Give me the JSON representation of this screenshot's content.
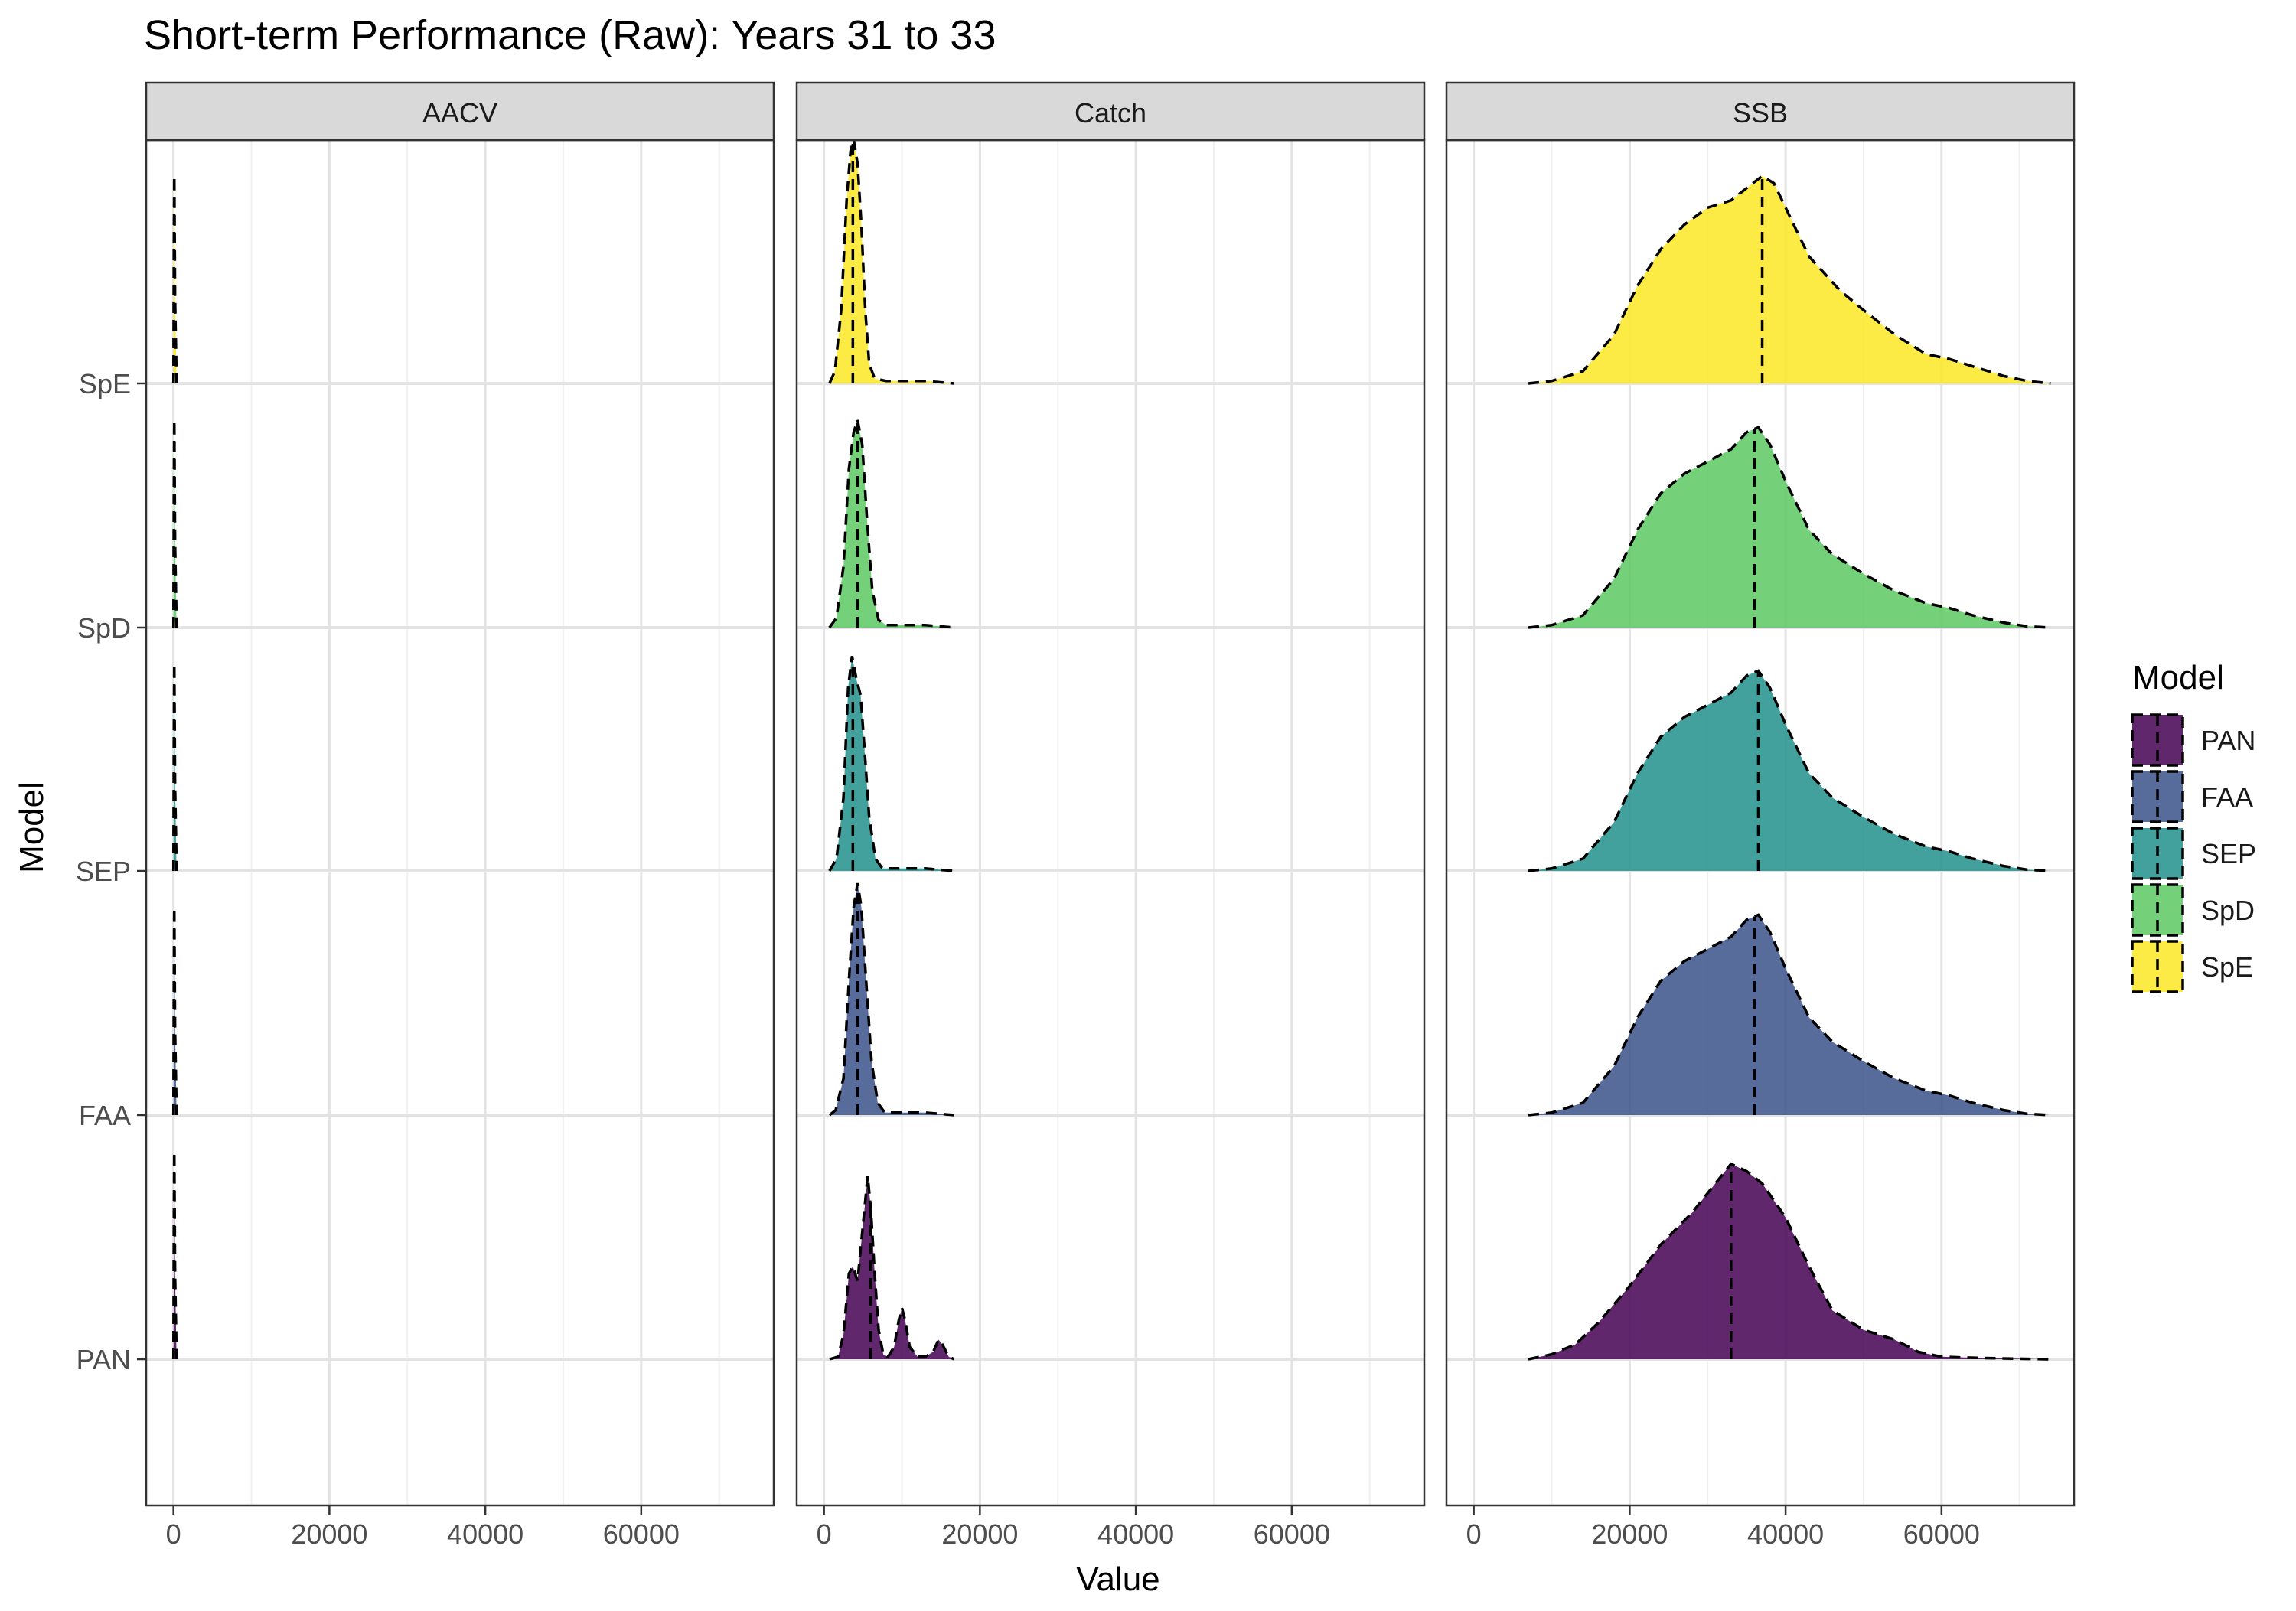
{
  "chart_data": {
    "type": "ridgeline-density",
    "title": "Short-term Performance (Raw): Years 31 to 33",
    "xlabel": "Value",
    "ylabel": "Model",
    "facets": [
      "AACV",
      "Catch",
      "SSB"
    ],
    "x_ticks": [
      0,
      20000,
      40000,
      60000
    ],
    "x_tick_labels": [
      "0",
      "20000",
      "40000",
      "60000"
    ],
    "xlim": [
      -3500,
      77000
    ],
    "grid": true,
    "models": [
      "PAN",
      "FAA",
      "SEP",
      "SpD",
      "SpE"
    ],
    "legend": {
      "title": "Model",
      "position": "right",
      "entries": [
        "PAN",
        "FAA",
        "SEP",
        "SpD",
        "SpE"
      ]
    },
    "colors": {
      "PAN": "#440154",
      "FAA": "#3B528B",
      "SEP": "#21908C",
      "SpD": "#5DC863",
      "SpE": "#FDE725"
    },
    "fill_opacity": 0.85,
    "median_line": "dashed",
    "series": [
      {
        "facet": "AACV",
        "model": "PAN",
        "median": 0,
        "density": [
          [
            0,
            0
          ],
          [
            50,
            0.55
          ],
          [
            100,
            0.85
          ],
          [
            200,
            0.35
          ],
          [
            400,
            0
          ]
        ]
      },
      {
        "facet": "AACV",
        "model": "FAA",
        "median": 0,
        "density": [
          [
            0,
            0
          ],
          [
            50,
            0.55
          ],
          [
            100,
            0.85
          ],
          [
            200,
            0.35
          ],
          [
            400,
            0
          ]
        ]
      },
      {
        "facet": "AACV",
        "model": "SEP",
        "median": 0,
        "density": [
          [
            0,
            0
          ],
          [
            50,
            0.55
          ],
          [
            100,
            0.85
          ],
          [
            200,
            0.35
          ],
          [
            400,
            0
          ]
        ]
      },
      {
        "facet": "AACV",
        "model": "SpD",
        "median": 0,
        "density": [
          [
            0,
            0
          ],
          [
            50,
            0.55
          ],
          [
            100,
            0.85
          ],
          [
            200,
            0.35
          ],
          [
            400,
            0
          ]
        ]
      },
      {
        "facet": "AACV",
        "model": "SpE",
        "median": 0,
        "density": [
          [
            0,
            0
          ],
          [
            50,
            0.55
          ],
          [
            100,
            0.85
          ],
          [
            200,
            0.35
          ],
          [
            400,
            0
          ]
        ]
      },
      {
        "facet": "Catch",
        "model": "PAN",
        "median": 6000,
        "density": [
          [
            700,
            0
          ],
          [
            1800,
            0.01
          ],
          [
            2500,
            0.1
          ],
          [
            3200,
            0.35
          ],
          [
            3700,
            0.38
          ],
          [
            4300,
            0.32
          ],
          [
            5000,
            0.55
          ],
          [
            5600,
            0.75
          ],
          [
            6000,
            0.62
          ],
          [
            6500,
            0.35
          ],
          [
            7000,
            0.12
          ],
          [
            7600,
            0.02
          ],
          [
            8200,
            0.01
          ],
          [
            9000,
            0.05
          ],
          [
            9600,
            0.16
          ],
          [
            10000,
            0.21
          ],
          [
            10400,
            0.16
          ],
          [
            11000,
            0.05
          ],
          [
            12000,
            0.01
          ],
          [
            13000,
            0.01
          ],
          [
            14000,
            0.03
          ],
          [
            14700,
            0.08
          ],
          [
            15200,
            0.06
          ],
          [
            16000,
            0.01
          ],
          [
            16700,
            0
          ]
        ]
      },
      {
        "facet": "Catch",
        "model": "FAA",
        "median": 4300,
        "density": [
          [
            700,
            0
          ],
          [
            1500,
            0.02
          ],
          [
            2500,
            0.15
          ],
          [
            3200,
            0.55
          ],
          [
            3800,
            0.85
          ],
          [
            4300,
            0.95
          ],
          [
            4800,
            0.85
          ],
          [
            5400,
            0.55
          ],
          [
            6100,
            0.22
          ],
          [
            6900,
            0.05
          ],
          [
            7800,
            0.01
          ],
          [
            10000,
            0.01
          ],
          [
            13000,
            0.01
          ],
          [
            16700,
            0
          ]
        ]
      },
      {
        "facet": "Catch",
        "model": "SEP",
        "median": 3700,
        "density": [
          [
            700,
            0
          ],
          [
            1600,
            0.05
          ],
          [
            2500,
            0.3
          ],
          [
            3100,
            0.75
          ],
          [
            3600,
            0.88
          ],
          [
            4200,
            0.78
          ],
          [
            4700,
            0.72
          ],
          [
            5200,
            0.5
          ],
          [
            5800,
            0.22
          ],
          [
            6600,
            0.05
          ],
          [
            7500,
            0.01
          ],
          [
            10000,
            0.01
          ],
          [
            13000,
            0.01
          ],
          [
            16700,
            0
          ]
        ]
      },
      {
        "facet": "Catch",
        "model": "SpD",
        "median": 4300,
        "density": [
          [
            700,
            0
          ],
          [
            1600,
            0.04
          ],
          [
            2500,
            0.25
          ],
          [
            3200,
            0.65
          ],
          [
            3800,
            0.8
          ],
          [
            4300,
            0.85
          ],
          [
            4900,
            0.75
          ],
          [
            5500,
            0.45
          ],
          [
            6200,
            0.15
          ],
          [
            7000,
            0.03
          ],
          [
            8000,
            0.01
          ],
          [
            10000,
            0.01
          ],
          [
            13000,
            0.01
          ],
          [
            16700,
            0
          ]
        ]
      },
      {
        "facet": "Catch",
        "model": "SpE",
        "median": 3700,
        "density": [
          [
            700,
            0
          ],
          [
            1400,
            0.05
          ],
          [
            2200,
            0.3
          ],
          [
            2900,
            0.75
          ],
          [
            3400,
            0.95
          ],
          [
            3800,
            1.0
          ],
          [
            4300,
            0.9
          ],
          [
            4800,
            0.65
          ],
          [
            5300,
            0.3
          ],
          [
            5800,
            0.08
          ],
          [
            6500,
            0.02
          ],
          [
            8000,
            0.01
          ],
          [
            11000,
            0.01
          ],
          [
            13000,
            0.01
          ],
          [
            16700,
            0
          ]
        ]
      },
      {
        "facet": "SSB",
        "model": "PAN",
        "median": 33000,
        "density": [
          [
            7000,
            0
          ],
          [
            10000,
            0.02
          ],
          [
            13000,
            0.06
          ],
          [
            16000,
            0.15
          ],
          [
            20000,
            0.3
          ],
          [
            24000,
            0.47
          ],
          [
            28000,
            0.6
          ],
          [
            31000,
            0.72
          ],
          [
            33000,
            0.8
          ],
          [
            35000,
            0.77
          ],
          [
            37000,
            0.72
          ],
          [
            40000,
            0.58
          ],
          [
            43000,
            0.38
          ],
          [
            46000,
            0.2
          ],
          [
            50000,
            0.12
          ],
          [
            54000,
            0.08
          ],
          [
            57000,
            0.03
          ],
          [
            60000,
            0.01
          ],
          [
            65000,
            0.005
          ],
          [
            70000,
            0.002
          ],
          [
            74000,
            0
          ]
        ]
      },
      {
        "facet": "SSB",
        "model": "FAA",
        "median": 36000,
        "density": [
          [
            7000,
            0
          ],
          [
            10000,
            0.01
          ],
          [
            14000,
            0.05
          ],
          [
            18000,
            0.2
          ],
          [
            21000,
            0.4
          ],
          [
            24000,
            0.55
          ],
          [
            27000,
            0.63
          ],
          [
            30000,
            0.68
          ],
          [
            33000,
            0.73
          ],
          [
            35000,
            0.8
          ],
          [
            36500,
            0.82
          ],
          [
            38000,
            0.75
          ],
          [
            40000,
            0.6
          ],
          [
            43000,
            0.4
          ],
          [
            46000,
            0.3
          ],
          [
            50000,
            0.22
          ],
          [
            54000,
            0.15
          ],
          [
            58000,
            0.1
          ],
          [
            61000,
            0.08
          ],
          [
            64000,
            0.05
          ],
          [
            68000,
            0.02
          ],
          [
            71000,
            0.005
          ],
          [
            74000,
            0
          ]
        ]
      },
      {
        "facet": "SSB",
        "model": "SEP",
        "median": 36500,
        "density": [
          [
            7000,
            0
          ],
          [
            10000,
            0.01
          ],
          [
            14000,
            0.05
          ],
          [
            18000,
            0.2
          ],
          [
            21000,
            0.4
          ],
          [
            24000,
            0.55
          ],
          [
            27000,
            0.63
          ],
          [
            30000,
            0.68
          ],
          [
            33000,
            0.73
          ],
          [
            35000,
            0.8
          ],
          [
            36500,
            0.82
          ],
          [
            38000,
            0.75
          ],
          [
            40000,
            0.6
          ],
          [
            43000,
            0.4
          ],
          [
            46000,
            0.3
          ],
          [
            50000,
            0.22
          ],
          [
            54000,
            0.15
          ],
          [
            58000,
            0.1
          ],
          [
            61000,
            0.08
          ],
          [
            64000,
            0.05
          ],
          [
            68000,
            0.02
          ],
          [
            71000,
            0.005
          ],
          [
            74000,
            0
          ]
        ]
      },
      {
        "facet": "SSB",
        "model": "SpD",
        "median": 36000,
        "density": [
          [
            7000,
            0
          ],
          [
            10000,
            0.01
          ],
          [
            14000,
            0.05
          ],
          [
            18000,
            0.2
          ],
          [
            21000,
            0.4
          ],
          [
            24000,
            0.55
          ],
          [
            27000,
            0.63
          ],
          [
            30000,
            0.68
          ],
          [
            33000,
            0.73
          ],
          [
            35000,
            0.8
          ],
          [
            36500,
            0.82
          ],
          [
            38000,
            0.75
          ],
          [
            40000,
            0.6
          ],
          [
            43000,
            0.4
          ],
          [
            46000,
            0.3
          ],
          [
            50000,
            0.22
          ],
          [
            54000,
            0.15
          ],
          [
            58000,
            0.1
          ],
          [
            61000,
            0.08
          ],
          [
            64000,
            0.05
          ],
          [
            68000,
            0.02
          ],
          [
            71000,
            0.005
          ],
          [
            74000,
            0
          ]
        ]
      },
      {
        "facet": "SSB",
        "model": "SpE",
        "median": 37000,
        "density": [
          [
            7000,
            0
          ],
          [
            10000,
            0.01
          ],
          [
            14000,
            0.05
          ],
          [
            18000,
            0.2
          ],
          [
            21000,
            0.4
          ],
          [
            24000,
            0.55
          ],
          [
            27000,
            0.65
          ],
          [
            30000,
            0.72
          ],
          [
            33000,
            0.75
          ],
          [
            35000,
            0.8
          ],
          [
            37000,
            0.85
          ],
          [
            38500,
            0.82
          ],
          [
            40000,
            0.72
          ],
          [
            43000,
            0.52
          ],
          [
            47000,
            0.38
          ],
          [
            50000,
            0.3
          ],
          [
            54000,
            0.2
          ],
          [
            58000,
            0.12
          ],
          [
            61000,
            0.1
          ],
          [
            64000,
            0.07
          ],
          [
            68000,
            0.03
          ],
          [
            71000,
            0.01
          ],
          [
            74000,
            0
          ]
        ]
      }
    ]
  }
}
